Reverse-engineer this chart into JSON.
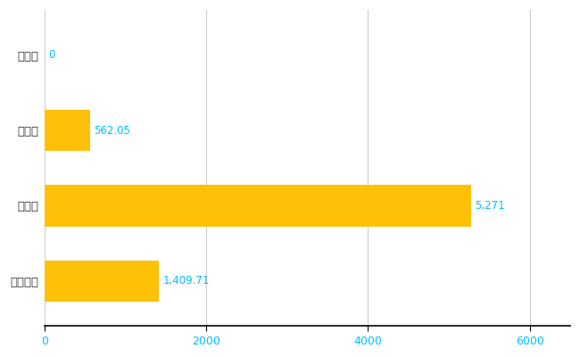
{
  "categories": [
    "曽ア村",
    "県平均",
    "県最大",
    "全国平均"
  ],
  "values": [
    0,
    562.05,
    5271,
    1409.71
  ],
  "bar_color": "#FFC107",
  "label_color": "#00BFFF",
  "label_texts": [
    "0",
    "562.05",
    "5,271",
    "1,409.71"
  ],
  "xlim": [
    0,
    6500
  ],
  "xticks": [
    0,
    2000,
    4000,
    6000
  ],
  "xtick_labels": [
    "0",
    "2000",
    "4000",
    "6000"
  ],
  "grid_color": "#cccccc",
  "bg_color": "#ffffff",
  "bar_height": 0.55,
  "figsize": [
    6.5,
    4.0
  ],
  "dpi": 100
}
